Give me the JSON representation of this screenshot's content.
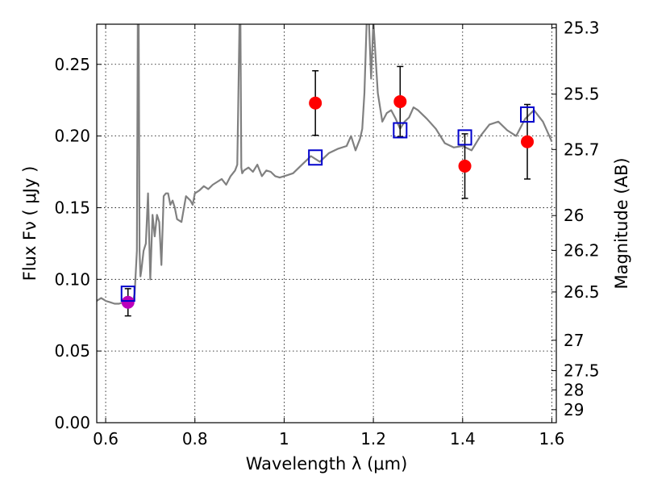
{
  "chart_data": {
    "type": "scatter",
    "xlabel": "Wavelength  λ (μm)",
    "ylabel": "Flux  Fν  ( μJy )",
    "ylabel_right": "Magnitude (AB)",
    "xlim": [
      0.58,
      1.61
    ],
    "ylim": [
      0.0,
      0.278
    ],
    "grid": true,
    "x_ticks": [
      0.6,
      0.8,
      1.0,
      1.2,
      1.4,
      1.6
    ],
    "x_tick_labels": [
      "0.6",
      "0.8",
      "1",
      "1.2",
      "1.4",
      "1.6"
    ],
    "y_ticks": [
      0.0,
      0.05,
      0.1,
      0.15,
      0.2,
      0.25
    ],
    "y_tick_labels": [
      "0.00",
      "0.05",
      "0.10",
      "0.15",
      "0.20",
      "0.25"
    ],
    "right_ticks": [
      {
        "flux": 0.2755,
        "label": "25.3"
      },
      {
        "flux": 0.2292,
        "label": "25.5"
      },
      {
        "flux": 0.1906,
        "label": "25.7"
      },
      {
        "flux": 0.1445,
        "label": "26"
      },
      {
        "flux": 0.1202,
        "label": "26.2"
      },
      {
        "flux": 0.0912,
        "label": "26.5"
      },
      {
        "flux": 0.0575,
        "label": "27"
      },
      {
        "flux": 0.0363,
        "label": "27.5"
      },
      {
        "flux": 0.0229,
        "label": "28"
      },
      {
        "flux": 0.0091,
        "label": "29"
      }
    ],
    "series": [
      {
        "kind": "line",
        "color": "#808080",
        "x": [
          0.58,
          0.59,
          0.6,
          0.61,
          0.62,
          0.63,
          0.64,
          0.65,
          0.66,
          0.665,
          0.67,
          0.672,
          0.674,
          0.676,
          0.678,
          0.68,
          0.685,
          0.69,
          0.695,
          0.7,
          0.705,
          0.71,
          0.715,
          0.72,
          0.725,
          0.73,
          0.735,
          0.74,
          0.745,
          0.75,
          0.755,
          0.76,
          0.77,
          0.78,
          0.79,
          0.795,
          0.8,
          0.81,
          0.82,
          0.83,
          0.84,
          0.85,
          0.86,
          0.87,
          0.88,
          0.89,
          0.895,
          0.9,
          0.902,
          0.904,
          0.906,
          0.91,
          0.92,
          0.93,
          0.94,
          0.95,
          0.96,
          0.97,
          0.98,
          0.99,
          1.0,
          1.02,
          1.04,
          1.06,
          1.08,
          1.1,
          1.12,
          1.14,
          1.15,
          1.16,
          1.17,
          1.175,
          1.18,
          1.185,
          1.19,
          1.195,
          1.2,
          1.21,
          1.22,
          1.23,
          1.24,
          1.25,
          1.26,
          1.27,
          1.28,
          1.29,
          1.3,
          1.32,
          1.34,
          1.36,
          1.38,
          1.4,
          1.42,
          1.44,
          1.46,
          1.48,
          1.5,
          1.52,
          1.54,
          1.56,
          1.58,
          1.6
        ],
        "y": [
          0.085,
          0.087,
          0.085,
          0.084,
          0.083,
          0.083,
          0.084,
          0.082,
          0.083,
          0.09,
          0.12,
          0.28,
          0.28,
          0.12,
          0.102,
          0.106,
          0.12,
          0.125,
          0.16,
          0.1,
          0.145,
          0.13,
          0.145,
          0.14,
          0.11,
          0.158,
          0.16,
          0.16,
          0.152,
          0.155,
          0.15,
          0.142,
          0.14,
          0.158,
          0.155,
          0.152,
          0.16,
          0.162,
          0.165,
          0.163,
          0.166,
          0.168,
          0.17,
          0.166,
          0.172,
          0.176,
          0.18,
          0.28,
          0.28,
          0.178,
          0.174,
          0.176,
          0.178,
          0.175,
          0.18,
          0.172,
          0.176,
          0.175,
          0.172,
          0.171,
          0.172,
          0.174,
          0.18,
          0.186,
          0.182,
          0.188,
          0.191,
          0.193,
          0.2,
          0.19,
          0.198,
          0.205,
          0.23,
          0.28,
          0.28,
          0.24,
          0.28,
          0.23,
          0.21,
          0.216,
          0.218,
          0.212,
          0.205,
          0.21,
          0.213,
          0.22,
          0.218,
          0.212,
          0.205,
          0.195,
          0.192,
          0.193,
          0.19,
          0.2,
          0.208,
          0.21,
          0.204,
          0.2,
          0.212,
          0.218,
          0.21,
          0.196
        ]
      },
      {
        "kind": "points",
        "marker": "circle",
        "color": "#ff0000",
        "x": [
          1.07,
          1.26,
          1.405,
          1.545
        ],
        "y": [
          0.223,
          0.224,
          0.179,
          0.196
        ],
        "err": [
          0.0225,
          0.0245,
          0.0225,
          0.026
        ]
      },
      {
        "kind": "points",
        "marker": "circle",
        "color": "#bb00bb",
        "x": [
          0.65
        ],
        "y": [
          0.084
        ],
        "err": [
          0.0095
        ]
      },
      {
        "kind": "points",
        "marker": "square",
        "color": "#0000cc",
        "x": [
          0.65,
          1.07,
          1.26,
          1.405,
          1.545
        ],
        "y": [
          0.09,
          0.185,
          0.204,
          0.199,
          0.215
        ]
      }
    ]
  }
}
